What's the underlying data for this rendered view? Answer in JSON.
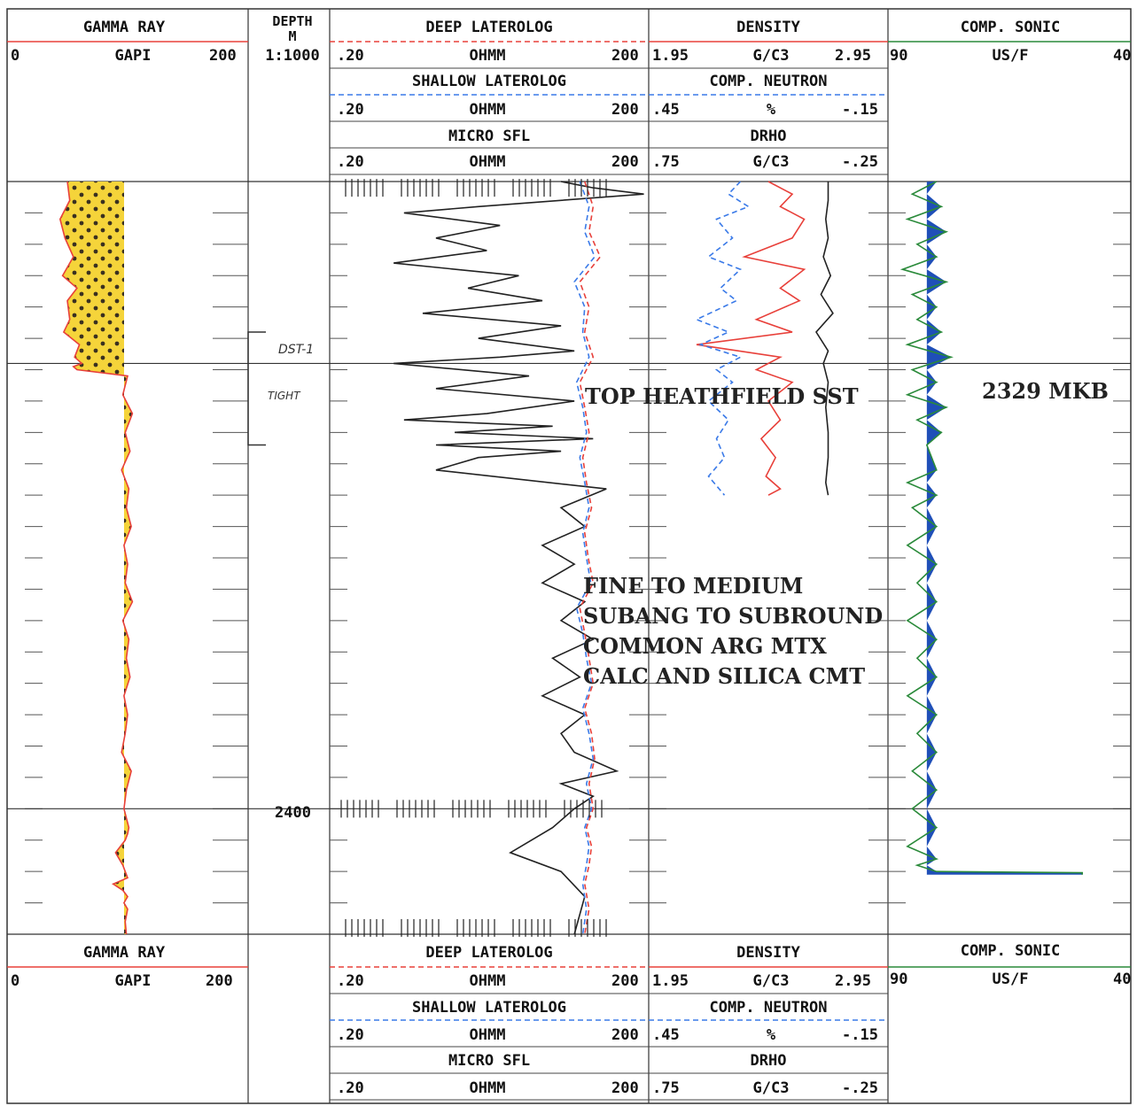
{
  "header": {
    "gamma_ray": {
      "title": "GAMMA RAY",
      "left": "0",
      "unit": "GAPI",
      "right": "200",
      "color": "#e8403a"
    },
    "depth": {
      "title": "DEPTH",
      "unit": "M",
      "scale": "1:1000"
    },
    "deep_laterolog": {
      "title": "DEEP LATEROLOG",
      "left": ".20",
      "unit": "OHMM",
      "right": "200",
      "color": "#e8403a"
    },
    "shallow_laterolog": {
      "title": "SHALLOW LATEROLOG",
      "left": ".20",
      "unit": "OHMM",
      "right": "200",
      "color": "#3a7ae8"
    },
    "micro_sfl": {
      "title": "MICRO SFL",
      "left": ".20",
      "unit": "OHMM",
      "right": "200",
      "color": "#222222"
    },
    "density": {
      "title": "DENSITY",
      "left": "1.95",
      "unit": "G/C3",
      "right": "2.95",
      "color": "#e8403a"
    },
    "comp_neutron": {
      "title": "COMP. NEUTRON",
      "left": ".45",
      "unit": "%",
      "right": "-.15",
      "color": "#3a7ae8"
    },
    "drho": {
      "title": "DRHO",
      "left": ".75",
      "unit": "G/C3",
      "right": "-.25",
      "color": "#222222"
    },
    "comp_sonic": {
      "title": "COMP. SONIC",
      "left": "90",
      "unit": "US/F",
      "right": "40",
      "color": "#2a8a3a"
    }
  },
  "annotations": {
    "dst": "DST-1",
    "tight": "TIGHT",
    "top_formation": "TOP HEATHFIELD SST",
    "top_depth": "2329 MKB",
    "depth_label": "2400",
    "lithology": [
      "FINE TO MEDIUM",
      "SUBANG TO SUBROUND",
      "COMMON ARG MTX",
      "CALC AND SILICA CMT"
    ]
  },
  "chart_data": {
    "type": "line",
    "title": "",
    "ylabel": "DEPTH M",
    "y_range": [
      2300,
      2420
    ],
    "y_reverse": true,
    "grid": true,
    "tracks": [
      {
        "name": "GAMMA RAY",
        "unit": "GAPI",
        "xlim": [
          0,
          200
        ],
        "scale": "linear",
        "x": [
          50,
          52,
          44,
          48,
          55,
          46,
          58,
          50,
          52,
          47,
          60,
          56,
          62,
          55,
          58,
          100,
          96,
          104,
          98,
          102,
          95,
          101,
          99,
          103,
          97,
          100,
          98,
          104,
          96,
          101,
          99,
          102,
          97,
          100,
          98,
          95,
          103,
          99,
          97,
          101,
          100,
          98,
          90,
          96,
          100,
          88,
          96,
          100,
          97,
          100,
          98,
          99
        ],
        "y": [
          2300,
          2303,
          2306,
          2309,
          2312,
          2315,
          2317,
          2319,
          2322,
          2324,
          2326,
          2328,
          2329,
          2329.5,
          2330,
          2331,
          2334,
          2337,
          2340,
          2343,
          2346,
          2349,
          2352,
          2355,
          2358,
          2361,
          2364,
          2367,
          2370,
          2373,
          2376,
          2379,
          2382,
          2385,
          2388,
          2391,
          2394,
          2397,
          2400,
          2403,
          2404,
          2405,
          2407,
          2409,
          2411,
          2412,
          2413,
          2414,
          2415,
          2416,
          2418,
          2420
        ]
      },
      {
        "name": "MICRO SFL",
        "unit": "OHMM",
        "xlim": [
          0.2,
          200
        ],
        "scale": "log",
        "x": [
          30,
          60,
          180,
          5,
          1,
          8,
          2,
          6,
          0.8,
          12,
          4,
          20,
          1.5,
          30,
          5,
          40,
          8,
          0.8,
          15,
          2,
          40,
          6,
          1,
          25,
          3,
          60,
          2,
          30,
          5,
          2,
          80,
          30,
          50,
          20,
          40,
          20,
          50,
          30,
          60,
          25,
          45,
          20,
          50,
          30,
          40,
          100,
          30,
          60,
          40,
          25,
          10,
          30,
          50,
          40
        ],
        "y": [
          2300,
          2301,
          2302,
          2304,
          2305,
          2307,
          2309,
          2311,
          2313,
          2315,
          2317,
          2319,
          2321,
          2323,
          2325,
          2327,
          2328,
          2329,
          2331,
          2333,
          2335,
          2337,
          2338,
          2339,
          2340,
          2341,
          2342,
          2343,
          2344,
          2346,
          2349,
          2352,
          2355,
          2358,
          2361,
          2364,
          2367,
          2370,
          2373,
          2376,
          2379,
          2382,
          2385,
          2388,
          2391,
          2394,
          2396,
          2398,
          2400,
          2403,
          2407,
          2410,
          2414,
          2420
        ]
      },
      {
        "name": "DEEP LATEROLOG",
        "unit": "OHMM",
        "xlim": [
          0.2,
          200
        ],
        "scale": "log",
        "x": [
          50,
          60,
          55,
          70,
          45,
          55,
          50,
          60,
          45,
          50,
          55,
          48,
          52,
          58,
          50,
          54,
          60,
          45,
          50,
          55,
          60,
          50,
          58,
          62,
          55,
          60,
          52,
          58,
          55,
          50,
          55,
          50
        ],
        "y": [
          2300,
          2304,
          2308,
          2312,
          2316,
          2320,
          2324,
          2328,
          2332,
          2336,
          2340,
          2344,
          2348,
          2352,
          2356,
          2360,
          2364,
          2368,
          2372,
          2376,
          2380,
          2384,
          2388,
          2392,
          2396,
          2400,
          2403,
          2406,
          2409,
          2412,
          2416,
          2420
        ]
      },
      {
        "name": "SHALLOW LATEROLOG",
        "unit": "OHMM",
        "xlim": [
          0.2,
          200
        ],
        "scale": "log",
        "x": [
          45,
          55,
          50,
          62,
          40,
          50,
          48,
          55,
          42,
          48,
          52,
          45,
          50,
          55,
          48,
          52,
          57,
          42,
          48,
          52,
          58,
          48,
          55,
          60,
          52,
          58,
          50,
          55,
          52,
          48,
          52,
          48
        ],
        "y": [
          2300,
          2304,
          2308,
          2312,
          2316,
          2320,
          2324,
          2328,
          2332,
          2336,
          2340,
          2344,
          2348,
          2352,
          2356,
          2360,
          2364,
          2368,
          2372,
          2376,
          2380,
          2384,
          2388,
          2392,
          2396,
          2400,
          2403,
          2406,
          2409,
          2412,
          2416,
          2420
        ]
      },
      {
        "name": "DENSITY",
        "unit": "G/C3",
        "xlim": [
          1.95,
          2.95
        ],
        "scale": "linear",
        "x": [
          2.45,
          2.55,
          2.5,
          2.6,
          2.55,
          2.35,
          2.6,
          2.5,
          2.58,
          2.4,
          2.55,
          2.15,
          2.5,
          2.4,
          2.55,
          2.45,
          2.5,
          2.42,
          2.48,
          2.44,
          2.5,
          2.45
        ],
        "y": [
          2300,
          2302,
          2304,
          2306,
          2309,
          2312,
          2314,
          2317,
          2319,
          2322,
          2324,
          2326,
          2328,
          2330,
          2332,
          2335,
          2338,
          2341,
          2344,
          2347,
          2349,
          2350
        ]
      },
      {
        "name": "COMP. NEUTRON",
        "unit": "%",
        "xlim": [
          0.45,
          -0.15
        ],
        "scale": "linear",
        "x": [
          0.22,
          0.25,
          0.2,
          0.28,
          0.24,
          0.3,
          0.22,
          0.27,
          0.23,
          0.33,
          0.25,
          0.32,
          0.22,
          0.28,
          0.24,
          0.3,
          0.25,
          0.28,
          0.26,
          0.3,
          0.26
        ],
        "y": [
          2300,
          2302,
          2304,
          2306,
          2309,
          2312,
          2314,
          2317,
          2319,
          2322,
          2324,
          2326,
          2328,
          2330,
          2332,
          2335,
          2338,
          2341,
          2344,
          2347,
          2350
        ]
      },
      {
        "name": "DRHO",
        "unit": "G/C3",
        "xlim": [
          0.75,
          -0.25
        ],
        "scale": "linear",
        "x": [
          0.0,
          0.0,
          0.01,
          0.0,
          0.02,
          -0.01,
          0.03,
          -0.02,
          0.05,
          0.0,
          0.02,
          0.0,
          0.01,
          0.0,
          0.0,
          0.01,
          0.0
        ],
        "y": [
          2300,
          2303,
          2306,
          2309,
          2312,
          2315,
          2318,
          2321,
          2324,
          2327,
          2329,
          2332,
          2336,
          2340,
          2344,
          2348,
          2350
        ]
      },
      {
        "name": "COMP. SONIC",
        "unit": "US/F",
        "xlim": [
          90,
          40
        ],
        "scale": "linear",
        "x": [
          80,
          85,
          79,
          86,
          78,
          84,
          80,
          87,
          78,
          85,
          80,
          84,
          79,
          86,
          77,
          85,
          80,
          86,
          78,
          84,
          79,
          82,
          81,
          80,
          86,
          80,
          85,
          80,
          86,
          80,
          84,
          80,
          86,
          80,
          84,
          80,
          86,
          80,
          84,
          80,
          85,
          80,
          85,
          80,
          86,
          80,
          84,
          80,
          50,
          50
        ],
        "y": [
          2300,
          2302,
          2304,
          2306,
          2308,
          2310,
          2312,
          2314,
          2316,
          2318,
          2320,
          2322,
          2324,
          2326,
          2328,
          2330,
          2332,
          2334,
          2336,
          2338,
          2340,
          2342,
          2344,
          2346,
          2348,
          2350,
          2352,
          2355,
          2358,
          2361,
          2364,
          2367,
          2370,
          2373,
          2376,
          2379,
          2382,
          2385,
          2388,
          2391,
          2394,
          2397,
          2400,
          2403,
          2406,
          2408,
          2409,
          2410,
          2410.2,
          2410.5
        ]
      }
    ]
  }
}
